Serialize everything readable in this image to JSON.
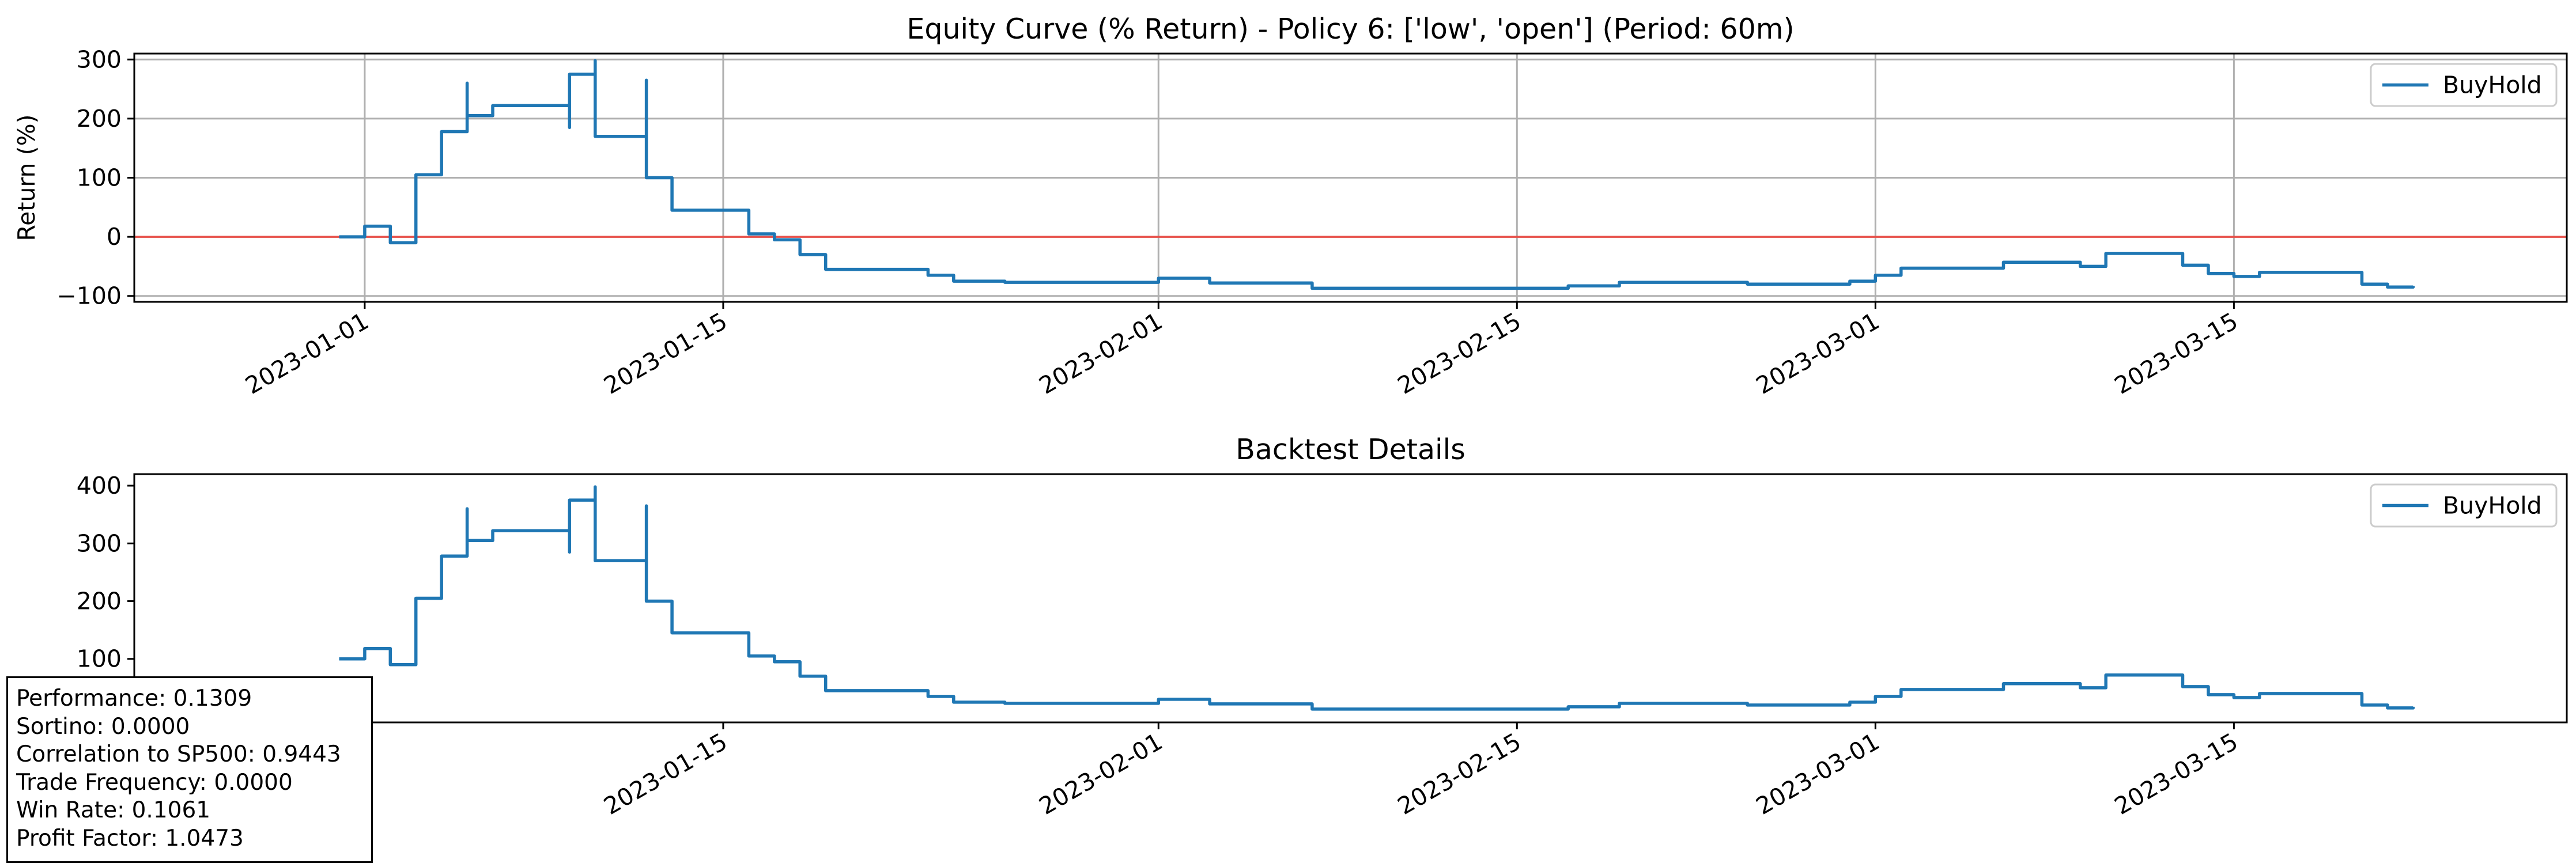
{
  "chart_data": [
    {
      "type": "line",
      "title": "Equity Curve (% Return) - Policy 6: ['low', 'open'] (Period: 60m)",
      "xlabel": "",
      "ylabel": "Return (%)",
      "xlim": [
        "2022-12-23",
        "2023-03-28"
      ],
      "ylim": [
        -110,
        310
      ],
      "yticks": [
        -100,
        0,
        100,
        200,
        300
      ],
      "xticks": [
        "2023-01-01",
        "2023-01-15",
        "2023-02-01",
        "2023-02-15",
        "2023-03-01",
        "2023-03-15"
      ],
      "grid": true,
      "legend": "top-right",
      "hline": {
        "y": 0,
        "color": "#e8504a"
      },
      "series": [
        {
          "name": "BuyHold",
          "color": "#1f77b4",
          "points": [
            [
              "2022-12-31",
              0
            ],
            [
              "2023-01-01",
              0
            ],
            [
              "2023-01-01",
              18
            ],
            [
              "2023-01-02",
              18
            ],
            [
              "2023-01-02",
              -10
            ],
            [
              "2023-01-03",
              -10
            ],
            [
              "2023-01-03",
              105
            ],
            [
              "2023-01-04",
              105
            ],
            [
              "2023-01-04",
              178
            ],
            [
              "2023-01-05",
              178
            ],
            [
              "2023-01-05",
              260
            ],
            [
              "2023-01-05",
              205
            ],
            [
              "2023-01-06",
              205
            ],
            [
              "2023-01-06",
              222
            ],
            [
              "2023-01-09",
              222
            ],
            [
              "2023-01-09",
              185
            ],
            [
              "2023-01-09",
              275
            ],
            [
              "2023-01-10",
              275
            ],
            [
              "2023-01-10",
              298
            ],
            [
              "2023-01-10",
              170
            ],
            [
              "2023-01-11",
              170
            ],
            [
              "2023-01-12",
              170
            ],
            [
              "2023-01-12",
              265
            ],
            [
              "2023-01-12",
              100
            ],
            [
              "2023-01-13",
              100
            ],
            [
              "2023-01-13",
              45
            ],
            [
              "2023-01-16",
              45
            ],
            [
              "2023-01-16",
              5
            ],
            [
              "2023-01-17",
              5
            ],
            [
              "2023-01-17",
              -5
            ],
            [
              "2023-01-18",
              -5
            ],
            [
              "2023-01-18",
              -30
            ],
            [
              "2023-01-19",
              -30
            ],
            [
              "2023-01-19",
              -55
            ],
            [
              "2023-01-23",
              -55
            ],
            [
              "2023-01-23",
              -65
            ],
            [
              "2023-01-24",
              -65
            ],
            [
              "2023-01-24",
              -75
            ],
            [
              "2023-01-26",
              -75
            ],
            [
              "2023-01-26",
              -77
            ],
            [
              "2023-02-01",
              -77
            ],
            [
              "2023-02-01",
              -70
            ],
            [
              "2023-02-03",
              -70
            ],
            [
              "2023-02-03",
              -78
            ],
            [
              "2023-02-07",
              -78
            ],
            [
              "2023-02-07",
              -87
            ],
            [
              "2023-02-17",
              -87
            ],
            [
              "2023-02-17",
              -83
            ],
            [
              "2023-02-19",
              -83
            ],
            [
              "2023-02-19",
              -77
            ],
            [
              "2023-02-24",
              -77
            ],
            [
              "2023-02-24",
              -80
            ],
            [
              "2023-02-28",
              -80
            ],
            [
              "2023-02-28",
              -75
            ],
            [
              "2023-03-01",
              -75
            ],
            [
              "2023-03-01",
              -65
            ],
            [
              "2023-03-02",
              -65
            ],
            [
              "2023-03-02",
              -53
            ],
            [
              "2023-03-06",
              -53
            ],
            [
              "2023-03-06",
              -43
            ],
            [
              "2023-03-09",
              -43
            ],
            [
              "2023-03-09",
              -50
            ],
            [
              "2023-03-10",
              -50
            ],
            [
              "2023-03-10",
              -28
            ],
            [
              "2023-03-13",
              -28
            ],
            [
              "2023-03-13",
              -48
            ],
            [
              "2023-03-14",
              -48
            ],
            [
              "2023-03-14",
              -62
            ],
            [
              "2023-03-15",
              -62
            ],
            [
              "2023-03-15",
              -67
            ],
            [
              "2023-03-16",
              -67
            ],
            [
              "2023-03-16",
              -60
            ],
            [
              "2023-03-20",
              -60
            ],
            [
              "2023-03-20",
              -80
            ],
            [
              "2023-03-21",
              -80
            ],
            [
              "2023-03-21",
              -85
            ],
            [
              "2023-03-22",
              -85
            ],
            [
              "2023-03-22",
              -83
            ]
          ]
        }
      ]
    },
    {
      "type": "line",
      "title": "Backtest Details",
      "xlabel": "",
      "ylabel": "",
      "xlim": [
        "2022-12-23",
        "2023-03-28"
      ],
      "ylim": [
        -10,
        420
      ],
      "yticks": [
        100,
        200,
        300,
        400
      ],
      "xticks": [
        "2023-01-15",
        "2023-02-01",
        "2023-02-15",
        "2023-03-01",
        "2023-03-15"
      ],
      "grid": false,
      "legend": "top-right",
      "series": [
        {
          "name": "BuyHold",
          "color": "#1f77b4",
          "points": [
            [
              "2022-12-31",
              100
            ],
            [
              "2023-01-01",
              100
            ],
            [
              "2023-01-01",
              118
            ],
            [
              "2023-01-02",
              118
            ],
            [
              "2023-01-02",
              90
            ],
            [
              "2023-01-03",
              90
            ],
            [
              "2023-01-03",
              205
            ],
            [
              "2023-01-04",
              205
            ],
            [
              "2023-01-04",
              278
            ],
            [
              "2023-01-05",
              278
            ],
            [
              "2023-01-05",
              360
            ],
            [
              "2023-01-05",
              305
            ],
            [
              "2023-01-06",
              305
            ],
            [
              "2023-01-06",
              322
            ],
            [
              "2023-01-09",
              322
            ],
            [
              "2023-01-09",
              285
            ],
            [
              "2023-01-09",
              375
            ],
            [
              "2023-01-10",
              375
            ],
            [
              "2023-01-10",
              398
            ],
            [
              "2023-01-10",
              270
            ],
            [
              "2023-01-11",
              270
            ],
            [
              "2023-01-12",
              270
            ],
            [
              "2023-01-12",
              365
            ],
            [
              "2023-01-12",
              200
            ],
            [
              "2023-01-13",
              200
            ],
            [
              "2023-01-13",
              145
            ],
            [
              "2023-01-16",
              145
            ],
            [
              "2023-01-16",
              105
            ],
            [
              "2023-01-17",
              105
            ],
            [
              "2023-01-17",
              95
            ],
            [
              "2023-01-18",
              95
            ],
            [
              "2023-01-18",
              70
            ],
            [
              "2023-01-19",
              70
            ],
            [
              "2023-01-19",
              45
            ],
            [
              "2023-01-23",
              45
            ],
            [
              "2023-01-23",
              35
            ],
            [
              "2023-01-24",
              35
            ],
            [
              "2023-01-24",
              25
            ],
            [
              "2023-01-26",
              25
            ],
            [
              "2023-01-26",
              23
            ],
            [
              "2023-02-01",
              23
            ],
            [
              "2023-02-01",
              30
            ],
            [
              "2023-02-03",
              30
            ],
            [
              "2023-02-03",
              22
            ],
            [
              "2023-02-07",
              22
            ],
            [
              "2023-02-07",
              13
            ],
            [
              "2023-02-17",
              13
            ],
            [
              "2023-02-17",
              17
            ],
            [
              "2023-02-19",
              17
            ],
            [
              "2023-02-19",
              23
            ],
            [
              "2023-02-24",
              23
            ],
            [
              "2023-02-24",
              20
            ],
            [
              "2023-02-28",
              20
            ],
            [
              "2023-02-28",
              25
            ],
            [
              "2023-03-01",
              25
            ],
            [
              "2023-03-01",
              35
            ],
            [
              "2023-03-02",
              35
            ],
            [
              "2023-03-02",
              47
            ],
            [
              "2023-03-06",
              47
            ],
            [
              "2023-03-06",
              57
            ],
            [
              "2023-03-09",
              57
            ],
            [
              "2023-03-09",
              50
            ],
            [
              "2023-03-10",
              50
            ],
            [
              "2023-03-10",
              72
            ],
            [
              "2023-03-13",
              72
            ],
            [
              "2023-03-13",
              52
            ],
            [
              "2023-03-14",
              52
            ],
            [
              "2023-03-14",
              38
            ],
            [
              "2023-03-15",
              38
            ],
            [
              "2023-03-15",
              33
            ],
            [
              "2023-03-16",
              33
            ],
            [
              "2023-03-16",
              40
            ],
            [
              "2023-03-20",
              40
            ],
            [
              "2023-03-20",
              20
            ],
            [
              "2023-03-21",
              20
            ],
            [
              "2023-03-21",
              15
            ],
            [
              "2023-03-22",
              15
            ],
            [
              "2023-03-22",
              17
            ]
          ]
        }
      ],
      "stats": [
        "Performance: 0.1309",
        "Sortino: 0.0000",
        "Correlation to SP500: 0.9443",
        "Trade Frequency: 0.0000",
        "Win Rate: 0.1061",
        "Profit Factor: 1.0473"
      ]
    }
  ]
}
